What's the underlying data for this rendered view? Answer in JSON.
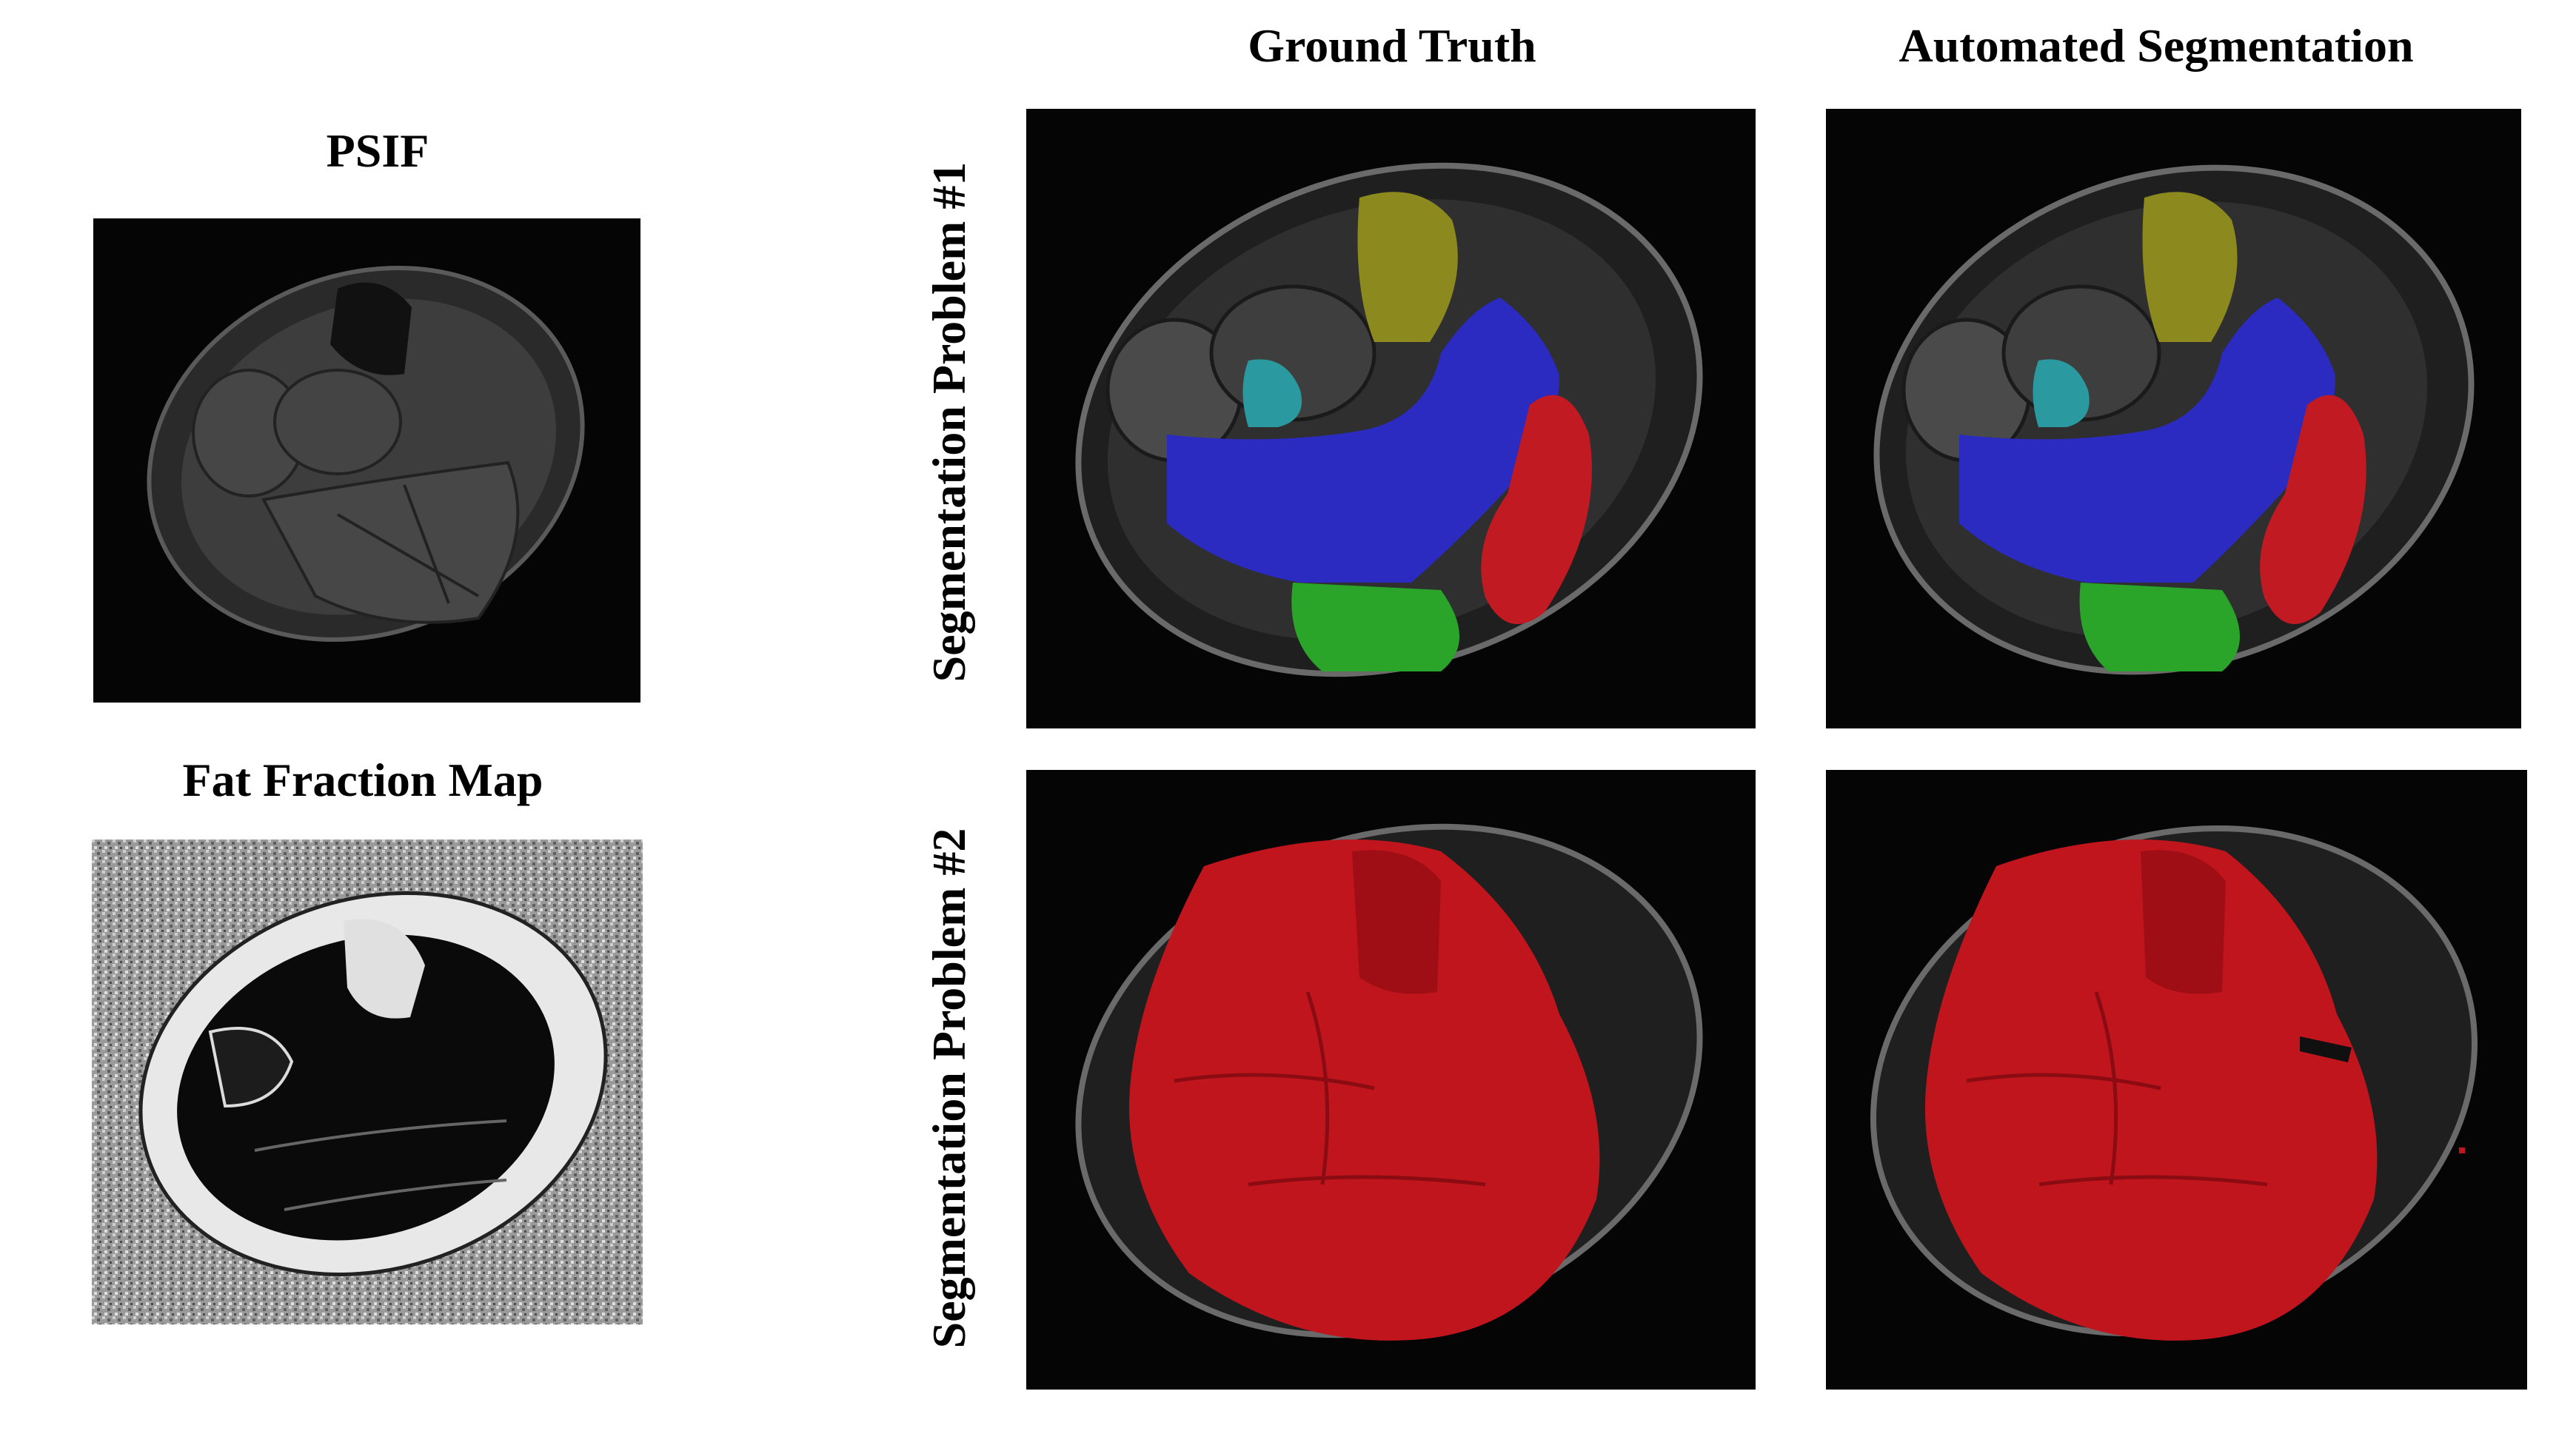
{
  "left_column": {
    "psif_title": "PSIF",
    "ffm_title": "Fat Fraction Map"
  },
  "columns": {
    "ground_truth": "Ground Truth",
    "automated": "Automated Segmentation"
  },
  "rows": {
    "problem1": "Segmentation Problem #1",
    "problem2": "Segmentation Problem #2"
  },
  "colors": {
    "background": "#050505",
    "seg_yellow": "#8c8a1e",
    "seg_blue": "#2b2bc2",
    "seg_red": "#c21a22",
    "seg_green": "#2aa52a",
    "seg_cyan": "#2a9aa0",
    "whole_muscle_red": "#c0151d"
  }
}
